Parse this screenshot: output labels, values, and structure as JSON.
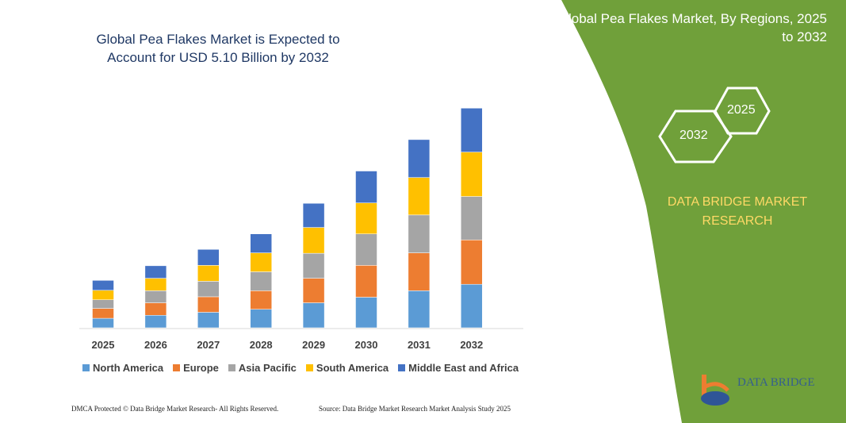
{
  "header": {
    "title": "Global Pea Flakes Market is Expected to Account for USD 5.10 Billion by 2032"
  },
  "side": {
    "title": "Global Pea Flakes Market, By Regions, 2025 to 2032",
    "hex_left": "2032",
    "hex_right": "2025",
    "brand": "DATA BRIDGE MARKET RESEARCH",
    "logo_text": "DATA BRIDGE",
    "bg_color": "#70a03a"
  },
  "footer": {
    "left": "DMCA Protected © Data Bridge Market Research- All Rights Reserved.",
    "right": "Source: Data Bridge Market Research Market Analysis Study 2025"
  },
  "chart_data": {
    "type": "bar",
    "stacked": true,
    "categories": [
      "2025",
      "2026",
      "2027",
      "2028",
      "2029",
      "2030",
      "2031",
      "2032"
    ],
    "series": [
      {
        "name": "North America",
        "color": "#5b9bd5",
        "values": [
          0.22,
          0.29,
          0.36,
          0.43,
          0.58,
          0.71,
          0.86,
          1.01
        ]
      },
      {
        "name": "Europe",
        "color": "#ed7d31",
        "values": [
          0.23,
          0.29,
          0.36,
          0.43,
          0.57,
          0.74,
          0.88,
          1.03
        ]
      },
      {
        "name": "Asia Pacific",
        "color": "#a5a5a5",
        "values": [
          0.2,
          0.28,
          0.36,
          0.44,
          0.58,
          0.73,
          0.88,
          1.01
        ]
      },
      {
        "name": "South America",
        "color": "#ffc000",
        "values": [
          0.22,
          0.29,
          0.37,
          0.44,
          0.6,
          0.72,
          0.87,
          1.03
        ]
      },
      {
        "name": "Middle East and Africa",
        "color": "#4472c4",
        "values": [
          0.23,
          0.29,
          0.37,
          0.44,
          0.56,
          0.74,
          0.88,
          1.02
        ]
      }
    ],
    "legend": "bottom",
    "grid": false
  }
}
